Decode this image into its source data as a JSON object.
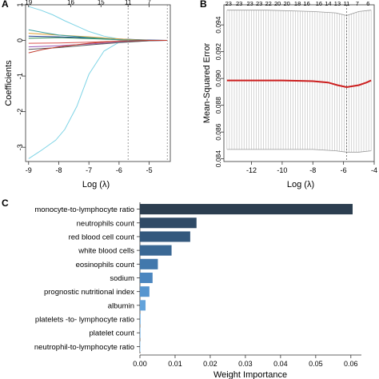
{
  "panels": {
    "a": "A",
    "b": "B",
    "c": "C"
  },
  "chart_data": [
    {
      "panel": "A",
      "type": "line",
      "xlabel": "Log (λ)",
      "ylabel": "Coefficients",
      "xlim": [
        -9.1,
        -4.3
      ],
      "ylim": [
        -3.4,
        1.0
      ],
      "x_ticks": [
        -9,
        -8,
        -7,
        -6,
        -5
      ],
      "y_ticks": [
        1,
        0,
        -1,
        -2,
        -3
      ],
      "top_ticks": [
        {
          "x": -9.0,
          "label": "19"
        },
        {
          "x": -7.6,
          "label": "16"
        },
        {
          "x": -6.6,
          "label": "15"
        },
        {
          "x": -5.7,
          "label": "11"
        },
        {
          "x": -5.0,
          "label": "7"
        }
      ],
      "vlines": [
        -5.7,
        -4.4
      ],
      "series": [
        {
          "color": "#7fd4e6",
          "points": [
            [
              -9.0,
              -3.32
            ],
            [
              -8.6,
              -3.1
            ],
            [
              -8.1,
              -2.8
            ],
            [
              -7.8,
              -2.5
            ],
            [
              -7.4,
              -1.85
            ],
            [
              -7.0,
              -0.95
            ],
            [
              -6.5,
              -0.3
            ],
            [
              -6.0,
              -0.05
            ],
            [
              -5.5,
              0.02
            ],
            [
              -4.4,
              0.0
            ]
          ]
        },
        {
          "color": "#7fd4e6",
          "points": [
            [
              -9.0,
              0.95
            ],
            [
              -8.6,
              0.85
            ],
            [
              -8.2,
              0.72
            ],
            [
              -7.8,
              0.55
            ],
            [
              -7.4,
              0.4
            ],
            [
              -7.0,
              0.25
            ],
            [
              -6.5,
              0.12
            ],
            [
              -6.0,
              0.04
            ],
            [
              -5.0,
              0.0
            ],
            [
              -4.4,
              0.0
            ]
          ]
        },
        {
          "color": "#1f3b8f",
          "points": [
            [
              -9.0,
              0.12
            ],
            [
              -8.0,
              0.1
            ],
            [
              -7.0,
              0.07
            ],
            [
              -6.0,
              0.04
            ],
            [
              -5.0,
              0.01
            ],
            [
              -4.4,
              0.0
            ]
          ]
        },
        {
          "color": "#2e8b57",
          "points": [
            [
              -9.0,
              0.06
            ],
            [
              -8.0,
              0.08
            ],
            [
              -7.0,
              0.05
            ],
            [
              -6.0,
              0.02
            ],
            [
              -5.0,
              0.0
            ],
            [
              -4.4,
              0.0
            ]
          ]
        },
        {
          "color": "#d9534f",
          "points": [
            [
              -9.0,
              -0.08
            ],
            [
              -8.0,
              -0.07
            ],
            [
              -7.0,
              -0.05
            ],
            [
              -6.0,
              -0.02
            ],
            [
              -5.0,
              0.0
            ],
            [
              -4.4,
              0.0
            ]
          ]
        },
        {
          "color": "#9b59b6",
          "points": [
            [
              -9.0,
              -0.18
            ],
            [
              -8.0,
              -0.15
            ],
            [
              -7.0,
              -0.1
            ],
            [
              -6.0,
              -0.05
            ],
            [
              -5.0,
              -0.01
            ],
            [
              -4.4,
              0.0
            ]
          ]
        },
        {
          "color": "#e0a030",
          "points": [
            [
              -9.0,
              0.2
            ],
            [
              -8.0,
              0.15
            ],
            [
              -7.0,
              0.1
            ],
            [
              -6.0,
              0.04
            ],
            [
              -5.0,
              0.0
            ],
            [
              -4.4,
              0.0
            ]
          ]
        },
        {
          "color": "#555555",
          "points": [
            [
              -9.0,
              -0.25
            ],
            [
              -8.0,
              -0.2
            ],
            [
              -7.0,
              -0.13
            ],
            [
              -6.0,
              -0.06
            ],
            [
              -5.0,
              -0.01
            ],
            [
              -4.4,
              0.0
            ]
          ]
        },
        {
          "color": "#3aa0a0",
          "points": [
            [
              -9.0,
              0.3
            ],
            [
              -8.5,
              0.22
            ],
            [
              -8.0,
              0.15
            ],
            [
              -7.0,
              0.08
            ],
            [
              -6.0,
              0.02
            ],
            [
              -5.0,
              0.0
            ],
            [
              -4.4,
              0.0
            ]
          ]
        },
        {
          "color": "#c0392b",
          "points": [
            [
              -9.0,
              -0.35
            ],
            [
              -8.5,
              -0.25
            ],
            [
              -8.0,
              -0.18
            ],
            [
              -7.0,
              -0.08
            ],
            [
              -6.0,
              -0.02
            ],
            [
              -5.0,
              0.0
            ],
            [
              -4.4,
              0.0
            ]
          ]
        }
      ]
    },
    {
      "panel": "B",
      "type": "line",
      "xlabel": "Log (λ)",
      "ylabel": "Mean-Squared Error",
      "xlim": [
        -13.8,
        -4.0
      ],
      "ylim": [
        0.0838,
        0.0955
      ],
      "x_ticks": [
        -12,
        -10,
        -8,
        -6,
        -4
      ],
      "y_ticks": [
        0.084,
        0.086,
        0.088,
        0.09,
        0.092,
        0.094
      ],
      "y_tick_labels": [
        "0.084",
        "0.086",
        "0.088",
        "0.090",
        "0.092",
        "0.094"
      ],
      "top_ticks": [
        {
          "x": -13.5,
          "label": "23"
        },
        {
          "x": -12.8,
          "label": "23"
        },
        {
          "x": -12.1,
          "label": "23"
        },
        {
          "x": -11.5,
          "label": "23"
        },
        {
          "x": -10.9,
          "label": "22"
        },
        {
          "x": -10.3,
          "label": "20"
        },
        {
          "x": -9.7,
          "label": "20"
        },
        {
          "x": -9.0,
          "label": "18"
        },
        {
          "x": -8.4,
          "label": "16"
        },
        {
          "x": -7.6,
          "label": "16"
        },
        {
          "x": -7.0,
          "label": "14"
        },
        {
          "x": -6.4,
          "label": "13"
        },
        {
          "x": -5.8,
          "label": "11"
        },
        {
          "x": -5.1,
          "label": "7"
        },
        {
          "x": -4.4,
          "label": "6"
        }
      ],
      "vlines": [
        -5.8
      ],
      "mse": [
        [
          -13.6,
          0.08985
        ],
        [
          -12.0,
          0.08985
        ],
        [
          -10.0,
          0.08985
        ],
        [
          -8.0,
          0.0898
        ],
        [
          -7.0,
          0.0897
        ],
        [
          -6.4,
          0.0895
        ],
        [
          -5.8,
          0.08935
        ],
        [
          -5.0,
          0.0895
        ],
        [
          -4.5,
          0.0897
        ],
        [
          -4.2,
          0.08985
        ]
      ],
      "upper": [
        [
          -13.6,
          0.0951
        ],
        [
          -11.0,
          0.0951
        ],
        [
          -8.0,
          0.095
        ],
        [
          -6.5,
          0.0949
        ],
        [
          -5.8,
          0.0947
        ],
        [
          -5.0,
          0.095
        ],
        [
          -4.2,
          0.0951
        ]
      ],
      "lower": [
        [
          -13.6,
          0.0847
        ],
        [
          -11.0,
          0.0847
        ],
        [
          -8.0,
          0.0847
        ],
        [
          -6.5,
          0.0846
        ],
        [
          -5.8,
          0.0845
        ],
        [
          -5.0,
          0.0845
        ],
        [
          -4.2,
          0.0846
        ]
      ]
    },
    {
      "panel": "C",
      "type": "bar",
      "orientation": "horizontal",
      "xlabel": "Weight Importance",
      "xlim": [
        0,
        0.063
      ],
      "x_ticks": [
        0.0,
        0.01,
        0.02,
        0.03,
        0.04,
        0.05,
        0.06
      ],
      "x_tick_labels": [
        "0.00",
        "0.01",
        "0.02",
        "0.03",
        "0.04",
        "0.05",
        "0.06"
      ],
      "categories": [
        "monocyte-to-lymphocyte ratio",
        "neutrophils count",
        "red blood cell count",
        "white blood cells",
        "eosinophils count",
        "sodium",
        "prognostic nutritional index",
        "albumin",
        "platelets -to- lymphocyte ratio",
        "platelet count",
        "neutrophil-to-lymphocyte ratio"
      ],
      "values": [
        0.0605,
        0.0161,
        0.0143,
        0.009,
        0.0051,
        0.0036,
        0.0027,
        0.0016,
        0.0002,
        0.0002,
        0.0001
      ],
      "colors": [
        "#2c3e50",
        "#2f4a66",
        "#33587d",
        "#3a6894",
        "#4278ac",
        "#4b86bf",
        "#5695cf",
        "#63a3db",
        "#7fb8e6",
        "#9ac8ec",
        "#b6d8f2"
      ]
    }
  ]
}
